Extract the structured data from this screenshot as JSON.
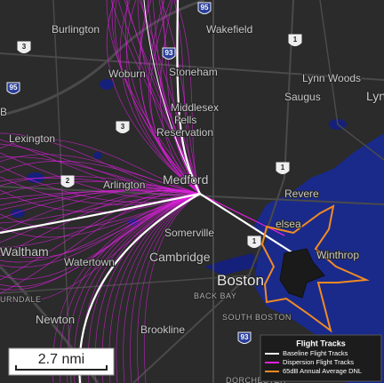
{
  "labels": [
    "Burlington",
    "Wakefield",
    "Woburn",
    "Stoneham",
    "Lynn Woods",
    "Saugus",
    "Lyn",
    "Lexington",
    "Middlesex",
    "Fells",
    "Reservation",
    "Arlington",
    "Medford",
    "Revere",
    "elsea",
    "Somerville",
    "Winthrop",
    "Waltham",
    "Watertown",
    "Cambridge",
    "Boston",
    "BACK BAY",
    "SOUTH BOSTON",
    "Newton",
    "Brookline",
    "DORCHESTER",
    "B",
    "URNDALE"
  ],
  "shields": [
    "95",
    "3",
    "93",
    "1",
    "95",
    "3",
    "1",
    "2",
    "1",
    "93"
  ],
  "legend": {
    "title": "Flight Tracks",
    "items": [
      {
        "label": "Baseline Flight Tracks",
        "color": "#ffffff"
      },
      {
        "label": "Dispersion Flight Tracks",
        "color": "#e020e0"
      },
      {
        "label": "65dB Annual Average DNL",
        "color": "#f08a24"
      }
    ]
  },
  "scale": "2.7 nmi"
}
